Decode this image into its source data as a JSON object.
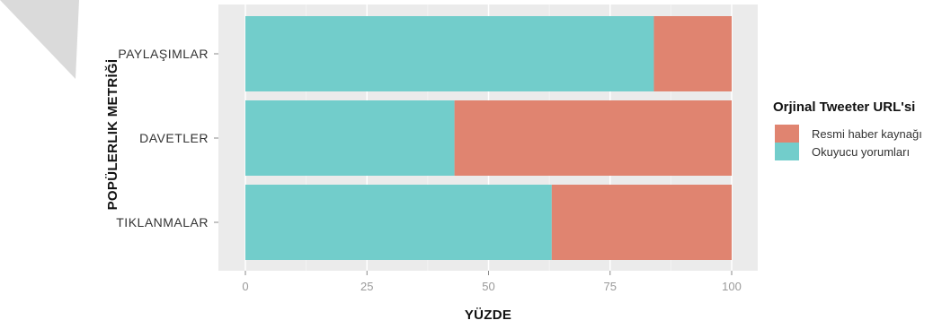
{
  "chart_data": {
    "type": "bar",
    "orientation": "horizontal",
    "stacked": true,
    "categories": [
      "PAYLAŞIMLAR",
      "DAVETLER",
      "TIKLANMALAR"
    ],
    "series": [
      {
        "name": "Okuyucu yorumları",
        "values": [
          84,
          43,
          63
        ],
        "color": "#72CDCB"
      },
      {
        "name": "Resmi haber kaynağı",
        "values": [
          16,
          57,
          37
        ],
        "color": "#E08470"
      }
    ],
    "xlabel": "YÜZDE",
    "ylabel": "POPÜLERLIK METRİĞİ",
    "xlim": [
      0,
      100
    ],
    "xticks": [
      0,
      25,
      50,
      75,
      100
    ],
    "grid": true,
    "legend": {
      "title": "Orjinal Tweeter URL'si",
      "position": "right",
      "items": [
        "Resmi haber kaynağı",
        "Okuyucu yorumları"
      ]
    }
  },
  "colors": {
    "panel_background": "#EBEBEB",
    "decoration": "#D9D9D9"
  }
}
